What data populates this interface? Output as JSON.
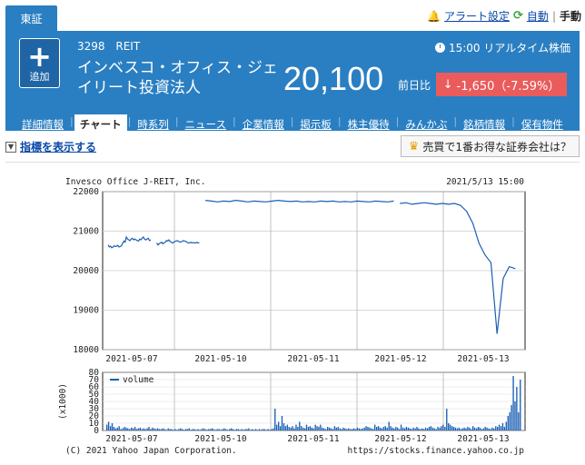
{
  "top": {
    "market": "東証",
    "alert": "アラート設定",
    "auto": "自動",
    "manual": "手動"
  },
  "header": {
    "add_label": "追加",
    "code": "3298",
    "category": "REIT",
    "realtime": "15:00 リアルタイム株価",
    "name": "インベスコ・オフィス・ジェイリート投資法人",
    "price": "20,100",
    "prev_label": "前日比",
    "change": "-1,650（-7.59%）"
  },
  "tabs": [
    "詳細情報",
    "チャート",
    "時系列",
    "ニュース",
    "企業情報",
    "掲示板",
    "株主優待",
    "みんかぶ",
    "銘柄情報",
    "保有物件"
  ],
  "indicator_label": "指標を表示する",
  "broker_button": "売買で1番お得な証券会社は？",
  "chart_data": [
    {
      "type": "line",
      "title": "Invesco Office J-REIT, Inc.",
      "timestamp": "2021/5/13 15:00",
      "x_ticks": [
        "2021-05-07",
        "2021-05-10",
        "2021-05-11",
        "2021-05-12",
        "2021-05-13"
      ],
      "ylim": [
        18000,
        22000
      ],
      "y_ticks": [
        18000,
        19000,
        20000,
        21000,
        22000
      ],
      "grid": true,
      "segments": [
        {
          "x": [
            0,
            0.2,
            0.4,
            0.6,
            0.8,
            1.0,
            1.2,
            1.4,
            1.6,
            1.8,
            2.0,
            2.2,
            2.4,
            2.6,
            2.8,
            3.0,
            3.2,
            3.4,
            3.6,
            3.8,
            4.0,
            4.2,
            4.4,
            4.6,
            4.8,
            5.0,
            5.2,
            5.4,
            5.6,
            5.8,
            6.0,
            6.2,
            6.4,
            6.6,
            6.8,
            7.0
          ],
          "y": [
            20650,
            20600,
            20620,
            20580,
            20600,
            20630,
            20610,
            20620,
            20640,
            20600,
            20610,
            20630,
            20700,
            20750,
            20720,
            20850,
            20800,
            20780,
            20760,
            20800,
            20820,
            20780,
            20800,
            20780,
            20760,
            20750,
            20800,
            20780,
            20820,
            20850,
            20800,
            20780,
            20800,
            20820,
            20760,
            20780
          ]
        },
        {
          "x": [
            8,
            8.2,
            8.4,
            8.6,
            8.8,
            9.0,
            9.2,
            9.4,
            9.6,
            9.8,
            10,
            10.2,
            10.4,
            10.6,
            10.8,
            11,
            11.2,
            11.4,
            11.6,
            11.8,
            12,
            12.2,
            12.4,
            12.6,
            12.8,
            13,
            13.2,
            13.4,
            13.6,
            13.8,
            14,
            14.2,
            14.4,
            14.6,
            14.8,
            15
          ],
          "y": [
            20700,
            20650,
            20680,
            20700,
            20720,
            20680,
            20700,
            20720,
            20760,
            20750,
            20780,
            20740,
            20720,
            20700,
            20720,
            20740,
            20750,
            20760,
            20740,
            20720,
            20730,
            20740,
            20760,
            20750,
            20740,
            20720,
            20700,
            20700,
            20720,
            20700,
            20710,
            20700,
            20700,
            20720,
            20700,
            20700
          ]
        },
        {
          "x": [
            16,
            17,
            18,
            19,
            20,
            21,
            22,
            23,
            24,
            25,
            26,
            27,
            28,
            29,
            30,
            31,
            32,
            33,
            34,
            35,
            36,
            37,
            38,
            39,
            40,
            41,
            42,
            43,
            44,
            45,
            46,
            47
          ],
          "y": [
            21780,
            21760,
            21740,
            21760,
            21750,
            21780,
            21760,
            21740,
            21760,
            21750,
            21740,
            21760,
            21780,
            21760,
            21750,
            21760,
            21740,
            21750,
            21740,
            21760,
            21750,
            21760,
            21740,
            21750,
            21740,
            21760,
            21750,
            21740,
            21760,
            21750,
            21740,
            21760
          ]
        },
        {
          "x": [
            48,
            49,
            50,
            51,
            52,
            53,
            54,
            55,
            56,
            57,
            58,
            59,
            60,
            61,
            62,
            63,
            64,
            65,
            66,
            67
          ],
          "y": [
            21700,
            21720,
            21680,
            21700,
            21720,
            21700,
            21680,
            21700,
            21680,
            21700,
            21650,
            21500,
            21200,
            20700,
            20400,
            20200,
            18400,
            19800,
            20100,
            20050
          ]
        }
      ],
      "segment_x_max": 68
    },
    {
      "type": "bar",
      "legend": "volume",
      "ylabel": "(x1000)",
      "ylim": [
        0,
        80
      ],
      "y_ticks": [
        0,
        10,
        20,
        30,
        40,
        50,
        60,
        70,
        80
      ],
      "grid": true,
      "x_ticks": [
        "2021-05-07",
        "2021-05-10",
        "2021-05-11",
        "2021-05-12",
        "2021-05-13"
      ],
      "values": [
        8,
        12,
        6,
        10,
        5,
        3,
        4,
        6,
        2,
        3,
        5,
        4,
        3,
        2,
        4,
        3,
        5,
        2,
        3,
        4,
        2,
        3,
        2,
        3,
        5,
        2,
        4,
        3,
        2,
        3,
        2,
        2,
        3,
        2,
        1,
        3,
        2,
        2,
        1,
        2,
        1,
        2,
        3,
        2,
        1,
        2,
        2,
        3,
        1,
        2,
        2,
        1,
        2,
        1,
        2,
        3,
        2,
        1,
        2,
        2,
        3,
        2,
        1,
        2,
        2,
        1,
        2,
        3,
        2,
        1,
        2,
        3,
        2,
        1,
        2,
        2,
        1,
        2,
        1,
        2,
        2,
        3,
        1,
        2,
        1,
        2,
        1,
        2,
        1,
        2,
        2,
        1,
        2,
        1,
        2,
        3,
        30,
        8,
        12,
        6,
        20,
        10,
        6,
        8,
        5,
        4,
        6,
        3,
        8,
        5,
        12,
        6,
        4,
        3,
        8,
        5,
        6,
        4,
        3,
        8,
        6,
        5,
        8,
        4,
        3,
        2,
        5,
        4,
        3,
        2,
        6,
        4,
        5,
        3,
        2,
        4,
        3,
        2,
        3,
        2,
        2,
        3,
        2,
        4,
        3,
        2,
        3,
        4,
        6,
        5,
        4,
        3,
        2,
        8,
        5,
        6,
        4,
        3,
        5,
        6,
        4,
        12,
        6,
        4,
        3,
        5,
        4,
        2,
        8,
        4,
        3,
        5,
        4,
        3,
        2,
        4,
        3,
        5,
        3,
        2,
        3,
        2,
        4,
        3,
        5,
        6,
        4,
        3,
        2,
        5,
        4,
        6,
        8,
        5,
        30,
        10,
        8,
        6,
        5,
        4,
        3,
        4,
        2,
        3,
        4,
        3,
        5,
        4,
        2,
        6,
        4,
        3,
        5,
        4,
        2,
        3,
        5,
        4,
        3,
        2,
        4,
        3,
        6,
        5,
        8,
        6,
        10,
        5,
        12,
        20,
        25,
        35,
        75,
        40,
        60,
        25,
        70
      ]
    }
  ],
  "footer_left": "(C) 2021 Yahoo Japan Corporation.",
  "footer_right": "https://stocks.finance.yahoo.co.jp"
}
